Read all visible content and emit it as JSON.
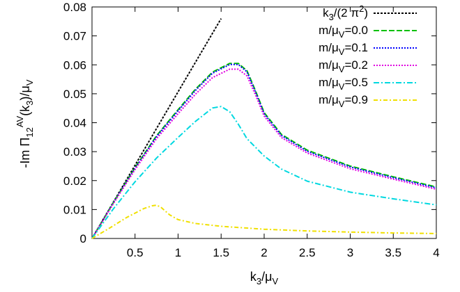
{
  "chart_data": {
    "type": "line",
    "xlabel": {
      "base": "k",
      "sub1": "3",
      "mid": "/μ",
      "sub2": "V"
    },
    "ylabel": {
      "pre": "-Im Π",
      "sub": "12",
      "sup": "AV",
      "mid": "(k",
      "sub2": "3",
      "post": ")/μ",
      "sub3": "V"
    },
    "xlim": [
      0,
      4
    ],
    "ylim": [
      0,
      0.08
    ],
    "xticks": [
      0.5,
      1,
      1.5,
      2,
      2.5,
      3,
      3.5,
      4
    ],
    "xtick_labels": [
      "0.5",
      "1",
      "1.5",
      "2",
      "2.5",
      "3",
      "3.5",
      "4"
    ],
    "yticks": [
      0,
      0.01,
      0.02,
      0.03,
      0.04,
      0.05,
      0.06,
      0.07,
      0.08
    ],
    "ytick_labels": [
      "0",
      "0.01",
      "0.02",
      "0.03",
      "0.04",
      "0.05",
      "0.06",
      "0.07",
      "0.08"
    ],
    "grid": false,
    "legend_position": "top-right",
    "series": [
      {
        "name": "k3/(2 π2)",
        "legend_parts": {
          "a": "k",
          "a_sub": "3",
          "b": "/(2 π",
          "b_sup": "2",
          "c": ")"
        },
        "color": "#000000",
        "dash": "3,2",
        "x": [
          0,
          0.25,
          0.5,
          0.75,
          1.0,
          1.25,
          1.5
        ],
        "y": [
          0,
          0.01267,
          0.02533,
          0.038,
          0.05066,
          0.06333,
          0.07599
        ]
      },
      {
        "name": "m/μV=0.0",
        "legend_parts": {
          "a": "m/μ",
          "a_sub": "V",
          "b": "=0.0"
        },
        "color": "#00c000",
        "dash": "8,3",
        "x": [
          0,
          0.25,
          0.5,
          0.75,
          1.0,
          1.2,
          1.4,
          1.6,
          1.7,
          1.8,
          1.9,
          2.0,
          2.2,
          2.5,
          3.0,
          3.5,
          4.0
        ],
        "y": [
          0,
          0.0125,
          0.0245,
          0.0355,
          0.0445,
          0.0515,
          0.0575,
          0.0605,
          0.0605,
          0.058,
          0.051,
          0.0435,
          0.036,
          0.0305,
          0.025,
          0.0213,
          0.0178
        ]
      },
      {
        "name": "m/μV=0.1",
        "legend_parts": {
          "a": "m/μ",
          "a_sub": "V",
          "b": "=0.1"
        },
        "color": "#0000ff",
        "dash": "2,2",
        "x": [
          0,
          0.25,
          0.5,
          0.75,
          1.0,
          1.2,
          1.4,
          1.6,
          1.7,
          1.8,
          1.9,
          2.0,
          2.2,
          2.5,
          3.0,
          3.5,
          4.0
        ],
        "y": [
          0,
          0.0124,
          0.0243,
          0.0352,
          0.0441,
          0.0511,
          0.0571,
          0.0601,
          0.0601,
          0.0576,
          0.0506,
          0.0431,
          0.0356,
          0.0301,
          0.0247,
          0.021,
          0.0175
        ]
      },
      {
        "name": "m/μV=0.2",
        "legend_parts": {
          "a": "m/μ",
          "a_sub": "V",
          "b": "=0.2"
        },
        "color": "#e000e0",
        "dash": "2,2",
        "x": [
          0,
          0.25,
          0.5,
          0.75,
          1.0,
          1.2,
          1.4,
          1.6,
          1.7,
          1.8,
          1.9,
          2.0,
          2.2,
          2.5,
          3.0,
          3.5,
          4.0
        ],
        "y": [
          0,
          0.0121,
          0.0238,
          0.0345,
          0.0431,
          0.0498,
          0.0556,
          0.0585,
          0.0585,
          0.0562,
          0.0496,
          0.0423,
          0.0349,
          0.0295,
          0.0241,
          0.0205,
          0.017
        ]
      },
      {
        "name": "m/μV=0.5",
        "legend_parts": {
          "a": "m/μ",
          "a_sub": "V",
          "b": "=0.5"
        },
        "color": "#00d8e0",
        "dash": "8,3,2,3",
        "x": [
          0,
          0.25,
          0.5,
          0.75,
          1.0,
          1.2,
          1.4,
          1.5,
          1.6,
          1.7,
          1.8,
          2.0,
          2.2,
          2.5,
          3.0,
          3.5,
          4.0
        ],
        "y": [
          0,
          0.0103,
          0.0196,
          0.0278,
          0.0349,
          0.0404,
          0.0451,
          0.0456,
          0.0438,
          0.0395,
          0.0345,
          0.0285,
          0.024,
          0.0198,
          0.016,
          0.0137,
          0.0116
        ]
      },
      {
        "name": "m/μV=0.9",
        "legend_parts": {
          "a": "m/μ",
          "a_sub": "V",
          "b": "=0.9"
        },
        "color": "#f0e000",
        "dash": "6,3,2,3",
        "x": [
          0,
          0.2,
          0.4,
          0.6,
          0.7,
          0.75,
          0.8,
          0.9,
          1.0,
          1.2,
          1.5,
          2.0,
          2.5,
          3.0,
          3.5,
          4.0
        ],
        "y": [
          0,
          0.0035,
          0.0072,
          0.0103,
          0.0113,
          0.0115,
          0.0108,
          0.0082,
          0.0065,
          0.0052,
          0.0042,
          0.0032,
          0.0026,
          0.0022,
          0.0019,
          0.0017
        ]
      }
    ]
  }
}
